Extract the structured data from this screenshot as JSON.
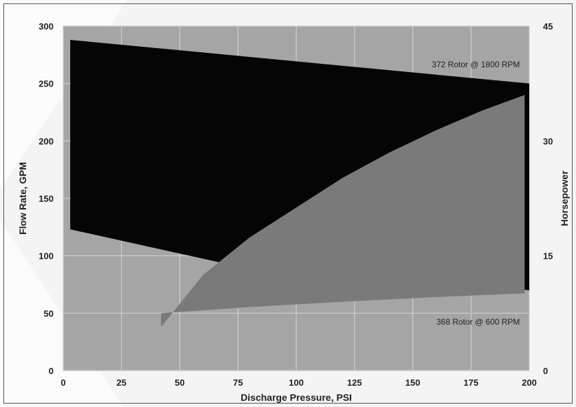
{
  "chart_data": {
    "type": "area",
    "title": "",
    "xlabel": "Discharge Pressure, PSI",
    "ylabel": "Flow Rate, GPM",
    "y2label": "Horsepower",
    "xlim": [
      0,
      200
    ],
    "ylim": [
      0,
      300
    ],
    "y2lim": [
      0,
      45
    ],
    "x_ticks": [
      0,
      25,
      50,
      75,
      100,
      125,
      150,
      175,
      200
    ],
    "y_ticks": [
      0,
      50,
      100,
      150,
      200,
      250,
      300
    ],
    "y2_ticks": [
      0,
      15,
      30,
      45
    ],
    "grid": true,
    "annotations": [
      {
        "text": "372 Rotor @ 1800 RPM",
        "x": 196,
        "y": 264
      },
      {
        "text": "368 Rotor @ 600 RPM",
        "x": 196,
        "y": 40
      }
    ],
    "series": [
      {
        "color": "#050505",
        "region": "flow",
        "upper": {
          "x": [
            3,
            200
          ],
          "y": [
            288,
            250
          ]
        },
        "lower": {
          "x": [
            3,
            70,
            200
          ],
          "y": [
            123,
            93,
            70
          ]
        }
      },
      {
        "color": "#7a7a7a",
        "region": "horsepower",
        "upper": {
          "x": [
            42,
            60,
            80,
            100,
            120,
            140,
            160,
            180,
            198
          ],
          "y": [
            5.7,
            12.5,
            17.4,
            21.3,
            25.2,
            28.5,
            31.4,
            34.0,
            36.0
          ]
        },
        "lower": {
          "x": [
            42,
            80,
            120,
            160,
            198
          ],
          "y": [
            7.5,
            8.3,
            9.0,
            9.6,
            10.1
          ]
        }
      }
    ]
  }
}
